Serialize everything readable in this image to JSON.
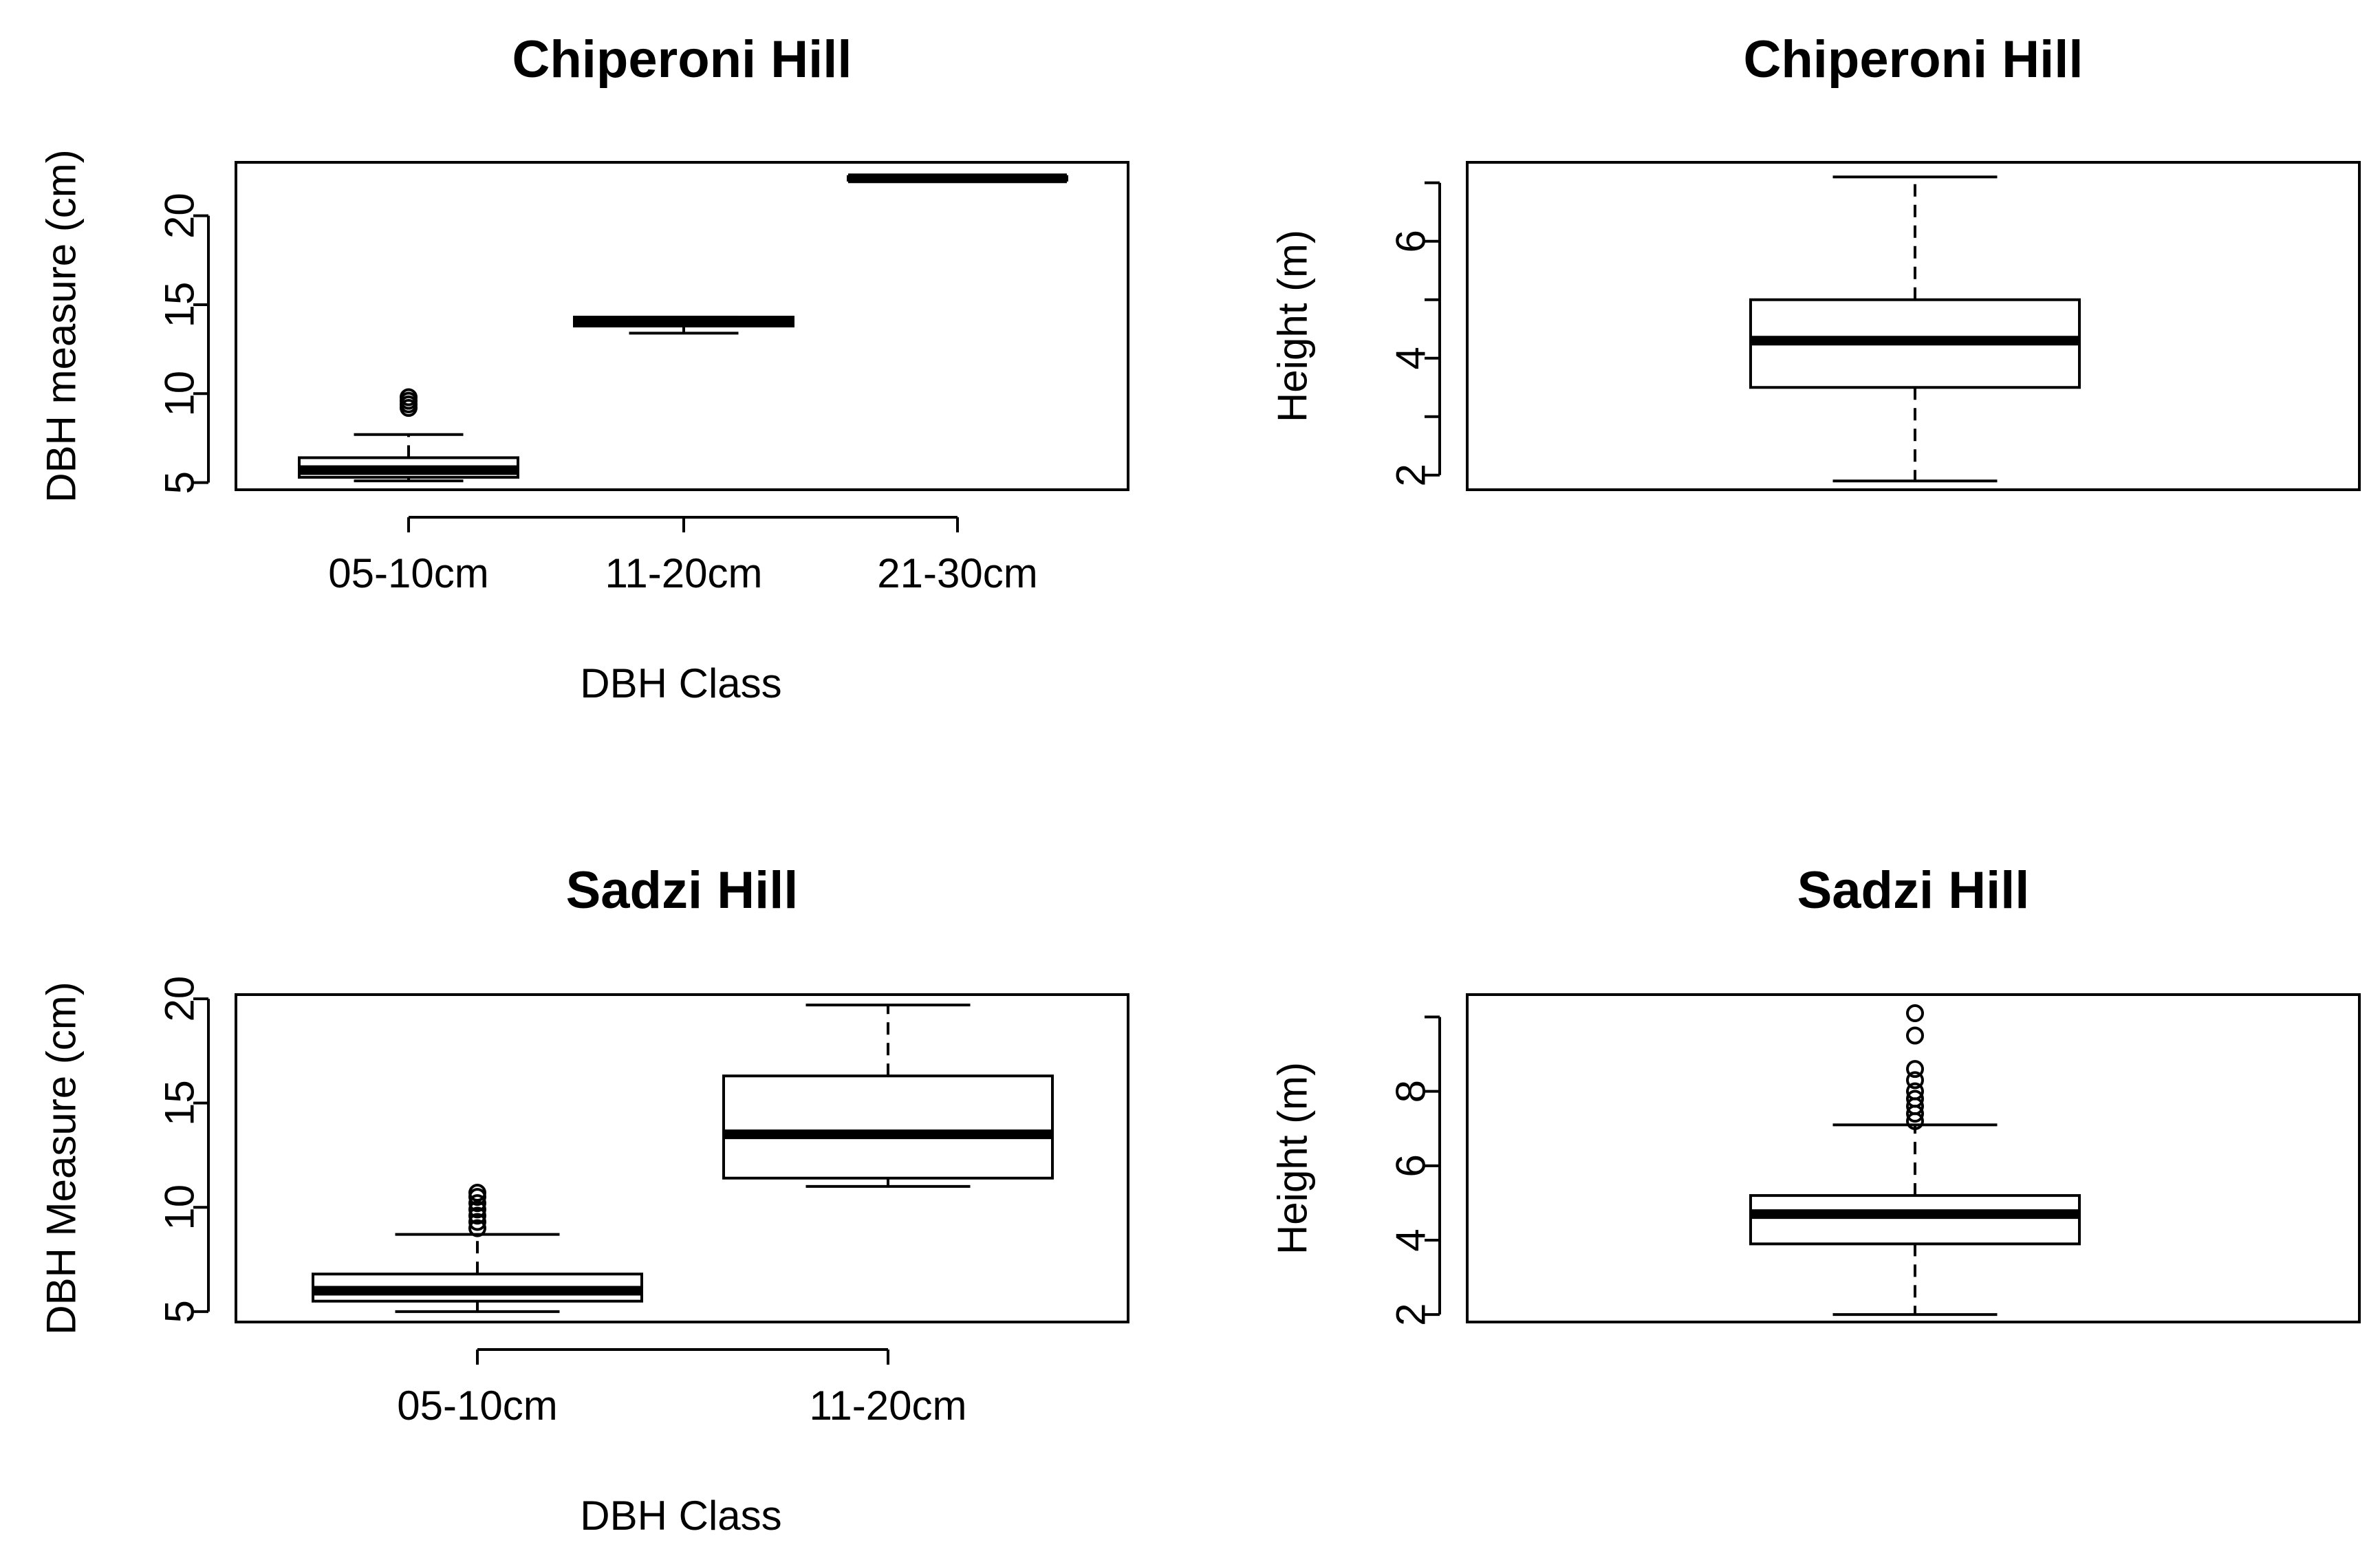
{
  "chart_data": [
    {
      "type": "boxplot",
      "title": "Chiperoni Hill",
      "xlabel": "DBH Class",
      "ylabel": "DBH measure (cm)",
      "categories": [
        "05-10cm",
        "11-20cm",
        "21-30cm"
      ],
      "ylim": [
        4.6,
        23.0
      ],
      "yticks": [
        5,
        10,
        15,
        20
      ],
      "boxes": [
        {
          "whisker_low": 5.1,
          "q1": 5.3,
          "median": 5.7,
          "q3": 6.4,
          "whisker_high": 7.7,
          "outliers": [
            9.2,
            9.4,
            9.6,
            9.8
          ]
        },
        {
          "whisker_low": 13.4,
          "q1": 13.8,
          "median": 14.0,
          "q3": 14.3,
          "whisker_high": 14.3,
          "outliers": []
        },
        {
          "whisker_low": 22.0,
          "q1": 22.0,
          "median": 22.1,
          "q3": 22.2,
          "whisker_high": 22.2,
          "outliers": []
        }
      ]
    },
    {
      "type": "boxplot",
      "title": "Chiperoni Hill",
      "xlabel": "",
      "ylabel": "Height (m)",
      "categories": [
        ""
      ],
      "ylim": [
        1.75,
        7.35
      ],
      "yticks": [
        2,
        4,
        6
      ],
      "minor_yticks": [
        3,
        5,
        7
      ],
      "boxes": [
        {
          "whisker_low": 1.9,
          "q1": 3.5,
          "median": 4.3,
          "q3": 5.0,
          "whisker_high": 7.1,
          "outliers": []
        }
      ]
    },
    {
      "type": "boxplot",
      "title": "Sadzi Hill",
      "xlabel": "DBH Class",
      "ylabel": "DBH Measure (cm)",
      "categories": [
        "05-10cm",
        "11-20cm"
      ],
      "ylim": [
        4.5,
        20.2
      ],
      "yticks": [
        5,
        10,
        15,
        20
      ],
      "boxes": [
        {
          "whisker_low": 5.0,
          "q1": 5.5,
          "median": 6.0,
          "q3": 6.8,
          "whisker_high": 8.7,
          "outliers": [
            9.0,
            9.3,
            9.6,
            9.9,
            10.2,
            10.5,
            10.7
          ]
        },
        {
          "whisker_low": 11.0,
          "q1": 11.4,
          "median": 13.5,
          "q3": 16.3,
          "whisker_high": 19.7,
          "outliers": []
        }
      ]
    },
    {
      "type": "boxplot",
      "title": "Sadzi Hill",
      "xlabel": "",
      "ylabel": "Height (m)",
      "categories": [
        ""
      ],
      "ylim": [
        1.8,
        10.6
      ],
      "yticks": [
        2,
        4,
        6,
        8
      ],
      "minor_yticks": [
        10
      ],
      "boxes": [
        {
          "whisker_low": 2.0,
          "q1": 3.9,
          "median": 4.7,
          "q3": 5.2,
          "whisker_high": 7.1,
          "outliers": [
            7.2,
            7.4,
            7.6,
            7.8,
            8.0,
            8.3,
            8.6,
            9.5,
            10.1
          ]
        }
      ]
    }
  ]
}
